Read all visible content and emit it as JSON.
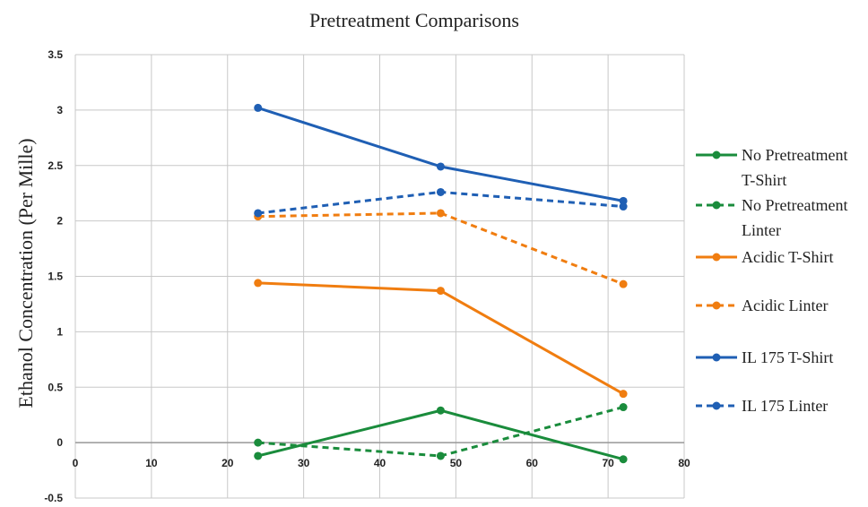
{
  "chart_data": {
    "type": "line",
    "title": "Pretreatment Comparisons",
    "xlabel": "",
    "ylabel": "Ethanol Concentration (Per Mille)",
    "xlim": [
      0,
      80
    ],
    "ylim": [
      -0.5,
      3.5
    ],
    "x_ticks": [
      "0",
      "10",
      "20",
      "30",
      "40",
      "50",
      "60",
      "70",
      "80"
    ],
    "y_ticks": [
      "3.5",
      "3",
      "2.5",
      "2",
      "1.5",
      "1",
      "0.5",
      "0",
      "-0.5"
    ],
    "grid": true,
    "legend_position": "right",
    "x": [
      24,
      48,
      72
    ],
    "series": [
      {
        "name": [
          "No Pretreatment",
          "T-Shirt"
        ],
        "color": "#1a8c3c",
        "dash": "solid",
        "values": [
          -0.12,
          0.29,
          -0.15
        ]
      },
      {
        "name": [
          "No Pretreatment",
          "Linter"
        ],
        "color": "#1a8c3c",
        "dash": "dashed",
        "values": [
          0.0,
          -0.12,
          0.32
        ]
      },
      {
        "name": [
          "Acidic T-Shirt"
        ],
        "color": "#f07d10",
        "dash": "solid",
        "values": [
          1.44,
          1.37,
          0.44
        ]
      },
      {
        "name": [
          "Acidic Linter"
        ],
        "color": "#f07d10",
        "dash": "dashed",
        "values": [
          2.04,
          2.07,
          1.43
        ]
      },
      {
        "name": [
          "IL 175 T-Shirt"
        ],
        "color": "#1f5fb4",
        "dash": "solid",
        "values": [
          3.02,
          2.49,
          2.18
        ]
      },
      {
        "name": [
          "IL 175 Linter"
        ],
        "color": "#1f5fb4",
        "dash": "dashed",
        "values": [
          2.07,
          2.26,
          2.13
        ]
      }
    ]
  }
}
